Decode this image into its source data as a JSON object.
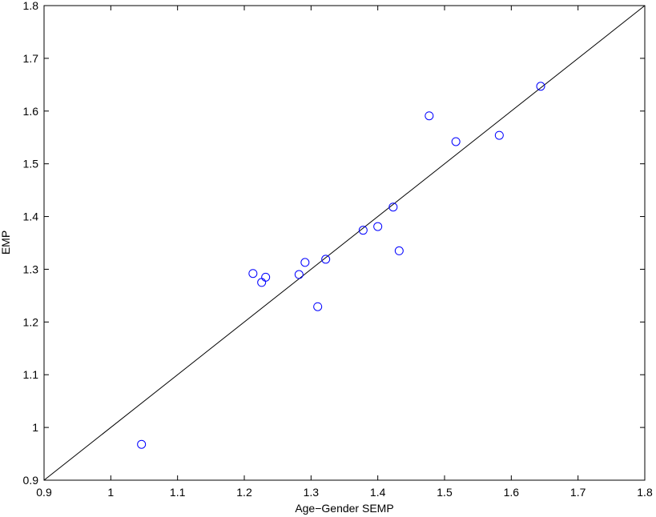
{
  "chart_data": {
    "type": "scatter",
    "x_label": "Age−Gender SEMP",
    "y_label": "EMP",
    "color": "#0000ff",
    "x": [
      1.046,
      1.213,
      1.226,
      1.232,
      1.282,
      1.291,
      1.31,
      1.322,
      1.378,
      1.4,
      1.423,
      1.432,
      1.477,
      1.517,
      1.582,
      1.644
    ],
    "values": [
      0.968,
      1.292,
      1.275,
      1.285,
      1.29,
      1.313,
      1.229,
      1.319,
      1.374,
      1.381,
      1.418,
      1.335,
      1.591,
      1.542,
      1.554,
      1.647
    ],
    "xlim": [
      0.9,
      1.8
    ],
    "ylim": [
      0.9,
      1.8
    ],
    "xticks": [
      0.9,
      1,
      1.1,
      1.2,
      1.3,
      1.4,
      1.5,
      1.6,
      1.7,
      1.8
    ],
    "yticks": [
      0.9,
      1,
      1.1,
      1.2,
      1.3,
      1.4,
      1.5,
      1.6,
      1.7,
      1.8
    ]
  }
}
